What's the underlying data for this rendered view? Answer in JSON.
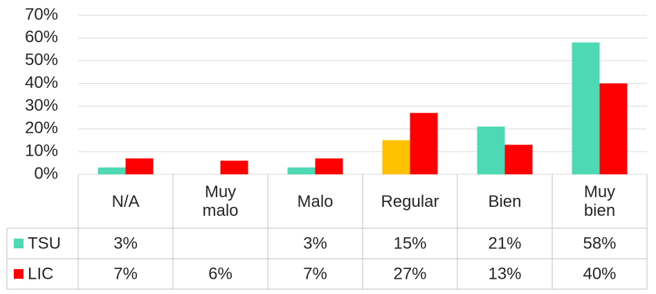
{
  "chart_data": {
    "type": "bar",
    "categories": [
      "N/A",
      "Muy malo",
      "Malo",
      "Regular",
      "Bien",
      "Muy bien"
    ],
    "series": [
      {
        "name": "TSU",
        "color": "#4dd9b3",
        "colors": [
          "#4dd9b3",
          "#4dd9b3",
          "#4dd9b3",
          "#ffc000",
          "#4dd9b3",
          "#4dd9b3"
        ],
        "values": [
          3,
          null,
          3,
          15,
          21,
          58
        ],
        "value_labels": [
          "3%",
          null,
          "3%",
          "15%",
          "21%",
          "58%"
        ]
      },
      {
        "name": "LIC",
        "color": "#ff0000",
        "values": [
          7,
          6,
          7,
          27,
          13,
          40
        ],
        "value_labels": [
          "7%",
          "6%",
          "7%",
          "27%",
          "13%",
          "40%"
        ]
      }
    ],
    "ylim": [
      0,
      70
    ],
    "yticks": [
      {
        "value": 0,
        "label": "0%"
      },
      {
        "value": 10,
        "label": "10%"
      },
      {
        "value": 20,
        "label": "20%"
      },
      {
        "value": 30,
        "label": "30%"
      },
      {
        "value": 40,
        "label": "40%"
      },
      {
        "value": 50,
        "label": "50%"
      },
      {
        "value": 60,
        "label": "60%"
      },
      {
        "value": 70,
        "label": "70%"
      }
    ],
    "grid": true
  }
}
